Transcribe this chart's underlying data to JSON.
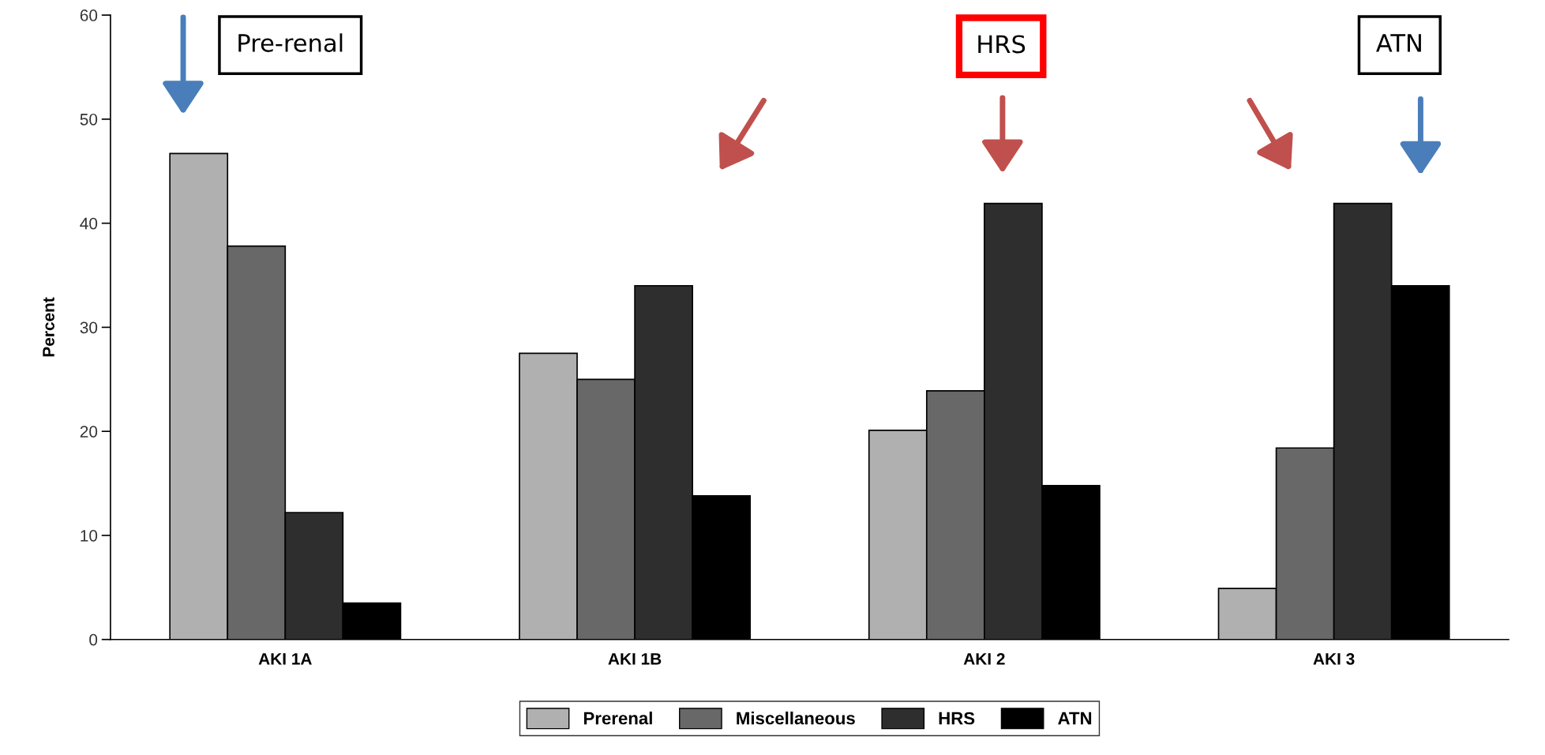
{
  "chart_data": {
    "type": "bar",
    "ylabel": "Percent",
    "categories": [
      "AKI 1A",
      "AKI 1B",
      "AKI 2",
      "AKI 3"
    ],
    "series": [
      {
        "name": "Prerenal",
        "color": "#b0b0b0",
        "values": [
          46.7,
          27.5,
          20.1,
          4.9
        ]
      },
      {
        "name": "Miscellaneous",
        "color": "#686868",
        "values": [
          37.8,
          25.0,
          23.9,
          18.4
        ]
      },
      {
        "name": "HRS",
        "color": "#2e2e2e",
        "values": [
          12.2,
          34.0,
          41.9,
          41.9
        ]
      },
      {
        "name": "ATN",
        "color": "#000000",
        "values": [
          3.5,
          13.8,
          14.8,
          34.0
        ]
      }
    ],
    "ylim": [
      0,
      60
    ],
    "yticks": [
      0,
      10,
      20,
      30,
      40,
      50,
      60
    ],
    "grid": false,
    "legend": "bottom",
    "annotations": [
      "Pre-renal",
      "HRS",
      "ATN"
    ]
  }
}
